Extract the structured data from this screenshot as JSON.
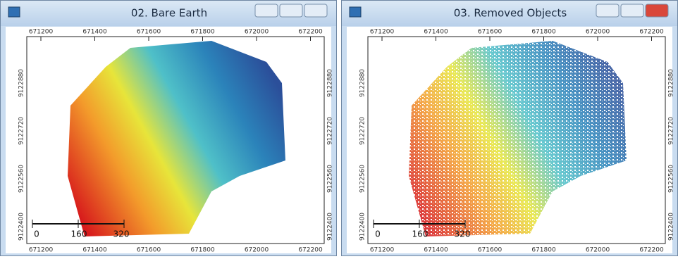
{
  "windows": [
    {
      "title": "02. Bare Earth",
      "x_ticks": [
        "671200",
        "671400",
        "671600",
        "671800",
        "672000",
        "672200"
      ],
      "y_ticks": [
        "9122880",
        "9122720",
        "9122560",
        "9122400"
      ],
      "scale_labels": [
        "0",
        "160",
        "320"
      ]
    },
    {
      "title": "03. Removed Objects",
      "x_ticks": [
        "671200",
        "671400",
        "671600",
        "671800",
        "672000",
        "672200"
      ],
      "y_ticks": [
        "9122880",
        "9122720",
        "9122560",
        "9122400"
      ],
      "scale_labels": [
        "0",
        "160",
        "320"
      ]
    }
  ]
}
